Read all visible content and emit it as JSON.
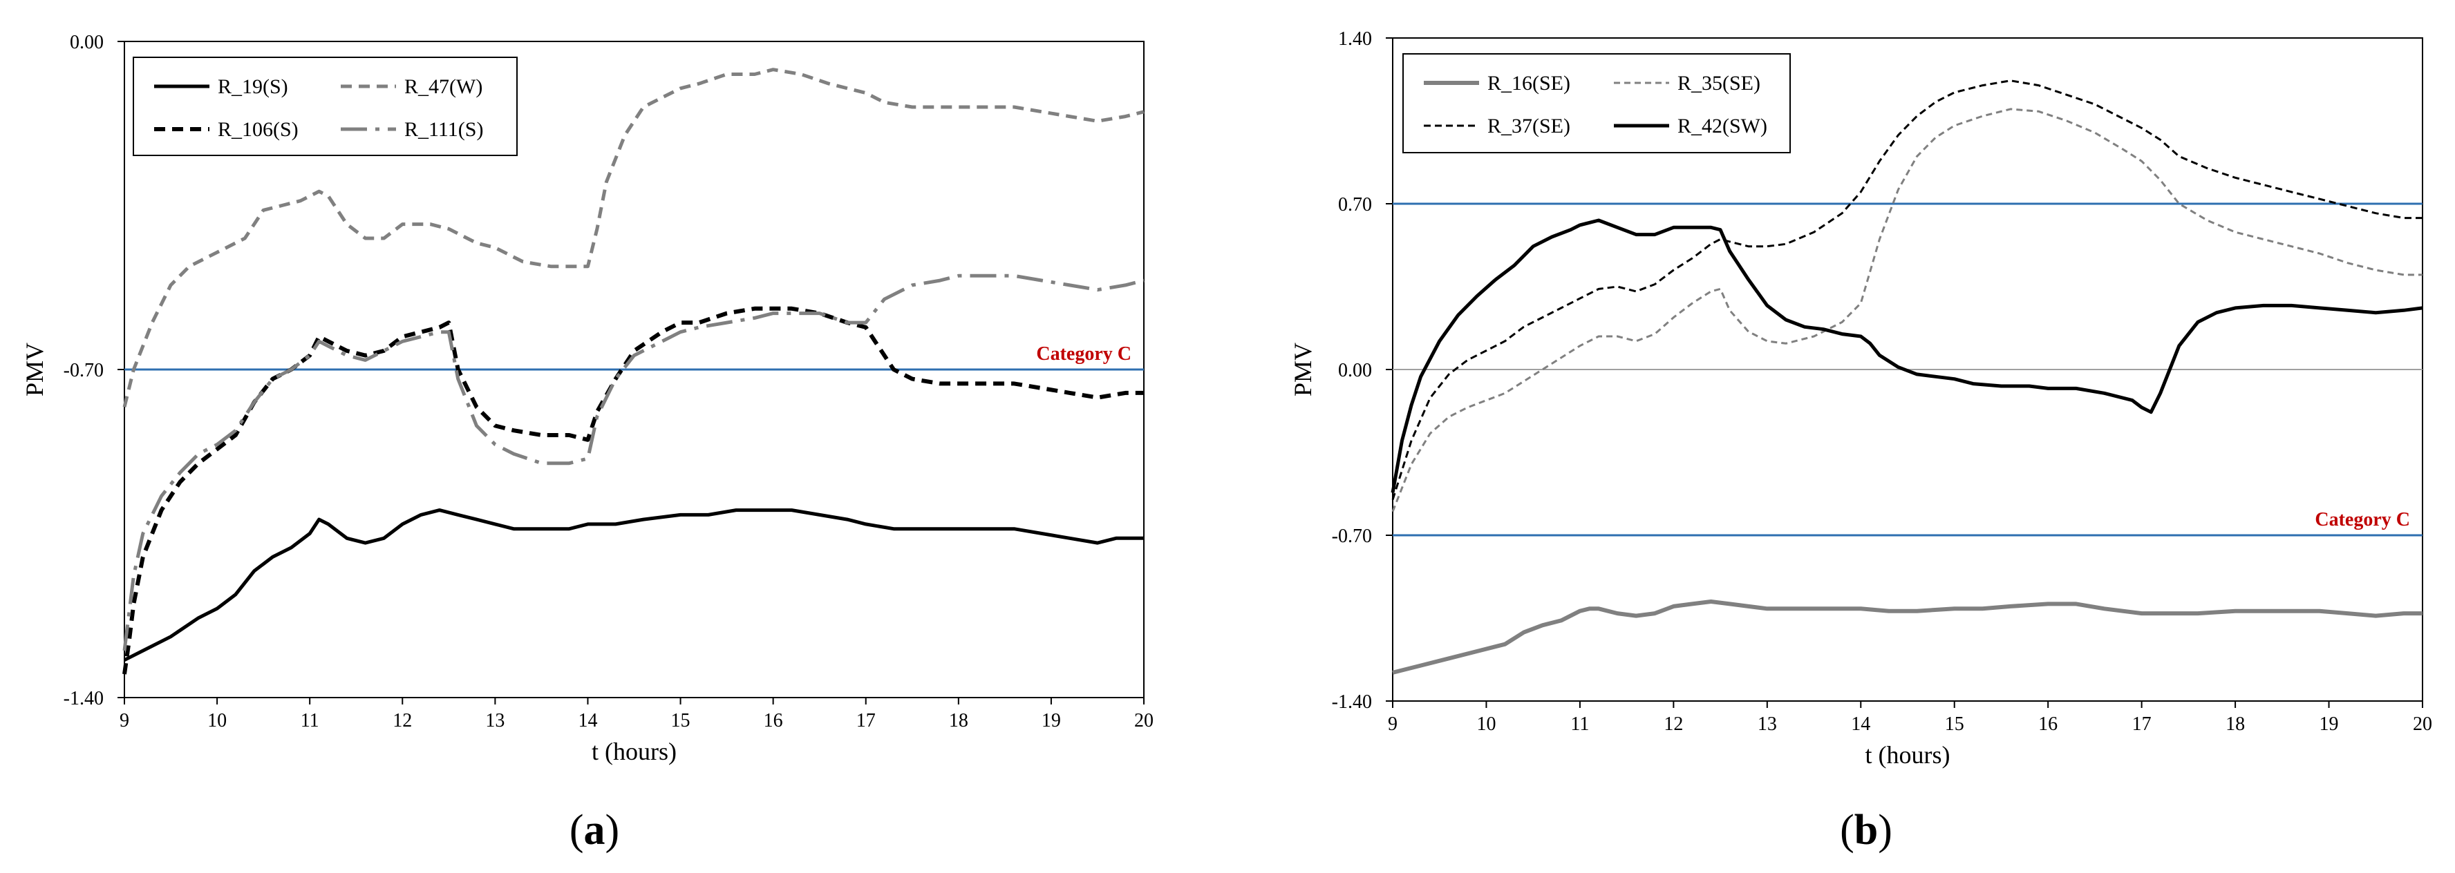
{
  "chart_data": [
    {
      "type": "line",
      "panel_label": "a",
      "xlabel": "t (hours)",
      "ylabel": "PMV",
      "xlim": [
        9,
        20
      ],
      "ylim": [
        -1.4,
        0.0
      ],
      "xticks": [
        9,
        10,
        11,
        12,
        13,
        14,
        15,
        16,
        17,
        18,
        19,
        20
      ],
      "yticks": [
        "0.00",
        "-0.70",
        "-1.40"
      ],
      "yticks_values": [
        0.0,
        -0.7,
        -1.4
      ],
      "reference_lines": [
        {
          "y": -0.7,
          "label": "Category C",
          "color": "#2e6fb0",
          "label_color": "#c00000"
        }
      ],
      "legend_position": "top-left",
      "series": [
        {
          "name": "R_19(S)",
          "color": "#000000",
          "dash": "solid",
          "width": 5,
          "x": [
            9,
            9.2,
            9.5,
            9.8,
            10,
            10.2,
            10.4,
            10.6,
            10.8,
            11,
            11.1,
            11.2,
            11.4,
            11.6,
            11.8,
            12,
            12.2,
            12.4,
            12.6,
            12.8,
            13,
            13.2,
            13.5,
            13.8,
            14,
            14.3,
            14.6,
            15,
            15.3,
            15.6,
            15.9,
            16.2,
            16.5,
            16.8,
            17,
            17.3,
            17.6,
            18,
            18.3,
            18.6,
            18.9,
            19.2,
            19.5,
            19.7,
            20
          ],
          "y": [
            -1.32,
            -1.3,
            -1.27,
            -1.23,
            -1.21,
            -1.18,
            -1.13,
            -1.1,
            -1.08,
            -1.05,
            -1.02,
            -1.03,
            -1.06,
            -1.07,
            -1.06,
            -1.03,
            -1.01,
            -1.0,
            -1.01,
            -1.02,
            -1.03,
            -1.04,
            -1.04,
            -1.04,
            -1.03,
            -1.03,
            -1.02,
            -1.01,
            -1.01,
            -1.0,
            -1.0,
            -1.0,
            -1.01,
            -1.02,
            -1.03,
            -1.04,
            -1.04,
            -1.04,
            -1.04,
            -1.04,
            -1.05,
            -1.06,
            -1.07,
            -1.06,
            -1.06
          ]
        },
        {
          "name": "R_47(W)",
          "color": "#808080",
          "dash": "dash",
          "width": 5,
          "x": [
            9,
            9.1,
            9.3,
            9.5,
            9.7,
            9.9,
            10.1,
            10.3,
            10.5,
            10.7,
            10.9,
            11,
            11.1,
            11.2,
            11.4,
            11.6,
            11.8,
            12,
            12.3,
            12.5,
            12.8,
            13,
            13.3,
            13.6,
            14,
            14.1,
            14.2,
            14.4,
            14.6,
            14.8,
            15,
            15.2,
            15.5,
            15.8,
            16,
            16.3,
            16.6,
            17,
            17.2,
            17.5,
            17.8,
            18,
            18.3,
            18.6,
            18.9,
            19.2,
            19.5,
            19.8,
            20
          ],
          "y": [
            -0.78,
            -0.7,
            -0.6,
            -0.52,
            -0.48,
            -0.46,
            -0.44,
            -0.42,
            -0.36,
            -0.35,
            -0.34,
            -0.33,
            -0.32,
            -0.33,
            -0.39,
            -0.42,
            -0.42,
            -0.39,
            -0.39,
            -0.4,
            -0.43,
            -0.44,
            -0.47,
            -0.48,
            -0.48,
            -0.4,
            -0.3,
            -0.2,
            -0.14,
            -0.12,
            -0.1,
            -0.09,
            -0.07,
            -0.07,
            -0.06,
            -0.07,
            -0.09,
            -0.11,
            -0.13,
            -0.14,
            -0.14,
            -0.14,
            -0.14,
            -0.14,
            -0.15,
            -0.16,
            -0.17,
            -0.16,
            -0.15
          ]
        },
        {
          "name": "R_106(S)",
          "color": "#000000",
          "dash": "dash",
          "width": 6,
          "x": [
            9,
            9.05,
            9.1,
            9.2,
            9.4,
            9.6,
            9.8,
            10,
            10.2,
            10.4,
            10.6,
            10.8,
            11,
            11.1,
            11.2,
            11.4,
            11.6,
            11.8,
            12,
            12.2,
            12.4,
            12.5,
            12.6,
            12.8,
            13,
            13.2,
            13.5,
            13.8,
            14,
            14.1,
            14.3,
            14.5,
            14.8,
            15,
            15.2,
            15.5,
            15.8,
            16,
            16.2,
            16.5,
            16.8,
            17,
            17.1,
            17.3,
            17.5,
            17.8,
            18,
            18.3,
            18.6,
            18.9,
            19.2,
            19.5,
            19.8,
            20
          ],
          "y": [
            -1.35,
            -1.28,
            -1.2,
            -1.1,
            -1.0,
            -0.94,
            -0.9,
            -0.87,
            -0.84,
            -0.77,
            -0.72,
            -0.7,
            -0.67,
            -0.63,
            -0.64,
            -0.66,
            -0.67,
            -0.66,
            -0.63,
            -0.62,
            -0.61,
            -0.6,
            -0.7,
            -0.78,
            -0.82,
            -0.83,
            -0.84,
            -0.84,
            -0.85,
            -0.79,
            -0.72,
            -0.66,
            -0.62,
            -0.6,
            -0.6,
            -0.58,
            -0.57,
            -0.57,
            -0.57,
            -0.58,
            -0.6,
            -0.61,
            -0.64,
            -0.7,
            -0.72,
            -0.73,
            -0.73,
            -0.73,
            -0.73,
            -0.74,
            -0.75,
            -0.76,
            -0.75,
            -0.75
          ]
        },
        {
          "name": "R_111(S)",
          "color": "#808080",
          "dash": "dashdot",
          "width": 5,
          "x": [
            9,
            9.05,
            9.1,
            9.2,
            9.4,
            9.6,
            9.8,
            10,
            10.2,
            10.4,
            10.6,
            10.8,
            11,
            11.1,
            11.2,
            11.4,
            11.6,
            11.8,
            12,
            12.2,
            12.4,
            12.5,
            12.6,
            12.8,
            13,
            13.2,
            13.5,
            13.8,
            14,
            14.1,
            14.3,
            14.5,
            14.8,
            15,
            15.2,
            15.5,
            15.8,
            16,
            16.2,
            16.5,
            16.8,
            17,
            17.2,
            17.5,
            17.8,
            18,
            18.3,
            18.6,
            18.9,
            19.2,
            19.5,
            19.8,
            20
          ],
          "y": [
            -1.3,
            -1.22,
            -1.14,
            -1.05,
            -0.97,
            -0.92,
            -0.88,
            -0.86,
            -0.83,
            -0.77,
            -0.72,
            -0.7,
            -0.67,
            -0.64,
            -0.65,
            -0.67,
            -0.68,
            -0.66,
            -0.64,
            -0.63,
            -0.62,
            -0.62,
            -0.72,
            -0.82,
            -0.86,
            -0.88,
            -0.9,
            -0.9,
            -0.89,
            -0.8,
            -0.72,
            -0.67,
            -0.64,
            -0.62,
            -0.61,
            -0.6,
            -0.59,
            -0.58,
            -0.58,
            -0.58,
            -0.6,
            -0.6,
            -0.55,
            -0.52,
            -0.51,
            -0.5,
            -0.5,
            -0.5,
            -0.51,
            -0.52,
            -0.53,
            -0.52,
            -0.51
          ]
        }
      ]
    },
    {
      "type": "line",
      "panel_label": "b",
      "xlabel": "t (hours)",
      "ylabel": "PMV",
      "xlim": [
        9,
        20
      ],
      "ylim": [
        -1.4,
        1.4
      ],
      "xticks": [
        9,
        10,
        11,
        12,
        13,
        14,
        15,
        16,
        17,
        18,
        19,
        20
      ],
      "yticks": [
        "1.40",
        "0.70",
        "0.00",
        "-0.70",
        "-1.40"
      ],
      "yticks_values": [
        1.4,
        0.7,
        0.0,
        -0.7,
        -1.4
      ],
      "reference_lines": [
        {
          "y": 0.7,
          "label": "",
          "color": "#2e6fb0"
        },
        {
          "y": 0.0,
          "label": "",
          "color": "#a0a0a0"
        },
        {
          "y": -0.7,
          "label": "Category C",
          "color": "#2e6fb0",
          "label_color": "#c00000"
        }
      ],
      "legend_position": "top-left",
      "series": [
        {
          "name": "R_16(SE)",
          "color": "#808080",
          "dash": "solid",
          "width": 6,
          "x": [
            9,
            9.3,
            9.6,
            9.9,
            10.2,
            10.4,
            10.6,
            10.8,
            11,
            11.1,
            11.2,
            11.4,
            11.6,
            11.8,
            12,
            12.2,
            12.4,
            12.6,
            12.8,
            13,
            13.3,
            13.6,
            14,
            14.3,
            14.6,
            15,
            15.3,
            15.6,
            16,
            16.3,
            16.6,
            17,
            17.3,
            17.6,
            18,
            18.3,
            18.6,
            18.9,
            19.2,
            19.5,
            19.8,
            20
          ],
          "y": [
            -1.28,
            -1.25,
            -1.22,
            -1.19,
            -1.16,
            -1.11,
            -1.08,
            -1.06,
            -1.02,
            -1.01,
            -1.01,
            -1.03,
            -1.04,
            -1.03,
            -1.0,
            -0.99,
            -0.98,
            -0.99,
            -1.0,
            -1.01,
            -1.01,
            -1.01,
            -1.01,
            -1.02,
            -1.02,
            -1.01,
            -1.01,
            -1.0,
            -0.99,
            -0.99,
            -1.01,
            -1.03,
            -1.03,
            -1.03,
            -1.02,
            -1.02,
            -1.02,
            -1.02,
            -1.03,
            -1.04,
            -1.03,
            -1.03
          ]
        },
        {
          "name": "R_35(SE)",
          "color": "#808080",
          "dash": "finedash",
          "width": 3,
          "x": [
            9,
            9.2,
            9.4,
            9.6,
            9.8,
            10,
            10.2,
            10.4,
            10.6,
            10.8,
            11,
            11.2,
            11.4,
            11.6,
            11.8,
            12,
            12.2,
            12.4,
            12.5,
            12.6,
            12.8,
            13,
            13.2,
            13.5,
            13.8,
            14,
            14.2,
            14.4,
            14.6,
            14.8,
            15,
            15.3,
            15.6,
            15.9,
            16.2,
            16.5,
            16.8,
            17,
            17.2,
            17.4,
            17.7,
            18,
            18.3,
            18.6,
            18.9,
            19.2,
            19.5,
            19.8,
            20
          ],
          "y": [
            -0.6,
            -0.4,
            -0.27,
            -0.2,
            -0.16,
            -0.13,
            -0.1,
            -0.05,
            0.0,
            0.05,
            0.1,
            0.14,
            0.14,
            0.12,
            0.15,
            0.22,
            0.28,
            0.33,
            0.34,
            0.25,
            0.16,
            0.12,
            0.11,
            0.14,
            0.2,
            0.28,
            0.55,
            0.76,
            0.9,
            0.98,
            1.03,
            1.07,
            1.1,
            1.09,
            1.05,
            1.0,
            0.93,
            0.88,
            0.8,
            0.7,
            0.63,
            0.58,
            0.55,
            0.52,
            0.49,
            0.45,
            0.42,
            0.4,
            0.4
          ]
        },
        {
          "name": "R_37(SE)",
          "color": "#000000",
          "dash": "shortdash",
          "width": 3,
          "x": [
            9,
            9.2,
            9.4,
            9.6,
            9.8,
            10,
            10.2,
            10.4,
            10.6,
            10.8,
            11,
            11.2,
            11.4,
            11.6,
            11.8,
            12,
            12.2,
            12.4,
            12.5,
            12.6,
            12.8,
            13,
            13.2,
            13.5,
            13.8,
            14,
            14.2,
            14.4,
            14.6,
            14.8,
            15,
            15.3,
            15.6,
            15.9,
            16.2,
            16.5,
            16.8,
            17,
            17.2,
            17.4,
            17.7,
            18,
            18.3,
            18.6,
            18.9,
            19.2,
            19.5,
            19.8,
            20
          ],
          "y": [
            -0.55,
            -0.3,
            -0.12,
            -0.02,
            0.04,
            0.08,
            0.12,
            0.18,
            0.22,
            0.26,
            0.3,
            0.34,
            0.35,
            0.33,
            0.36,
            0.42,
            0.47,
            0.53,
            0.55,
            0.54,
            0.52,
            0.52,
            0.53,
            0.58,
            0.66,
            0.75,
            0.88,
            0.99,
            1.07,
            1.13,
            1.17,
            1.2,
            1.22,
            1.2,
            1.16,
            1.12,
            1.06,
            1.02,
            0.97,
            0.9,
            0.85,
            0.81,
            0.78,
            0.75,
            0.72,
            0.69,
            0.66,
            0.64,
            0.64
          ]
        },
        {
          "name": "R_42(SW)",
          "color": "#000000",
          "dash": "solid",
          "width": 5,
          "x": [
            9,
            9.1,
            9.2,
            9.3,
            9.5,
            9.7,
            9.9,
            10.1,
            10.3,
            10.5,
            10.7,
            10.9,
            11,
            11.1,
            11.2,
            11.4,
            11.6,
            11.8,
            12,
            12.2,
            12.4,
            12.5,
            12.6,
            12.8,
            13,
            13.2,
            13.4,
            13.6,
            13.8,
            14,
            14.1,
            14.2,
            14.4,
            14.6,
            14.8,
            15,
            15.2,
            15.5,
            15.8,
            16,
            16.3,
            16.6,
            16.9,
            17,
            17.1,
            17.2,
            17.4,
            17.6,
            17.8,
            18,
            18.3,
            18.6,
            18.9,
            19.2,
            19.5,
            19.8,
            20
          ],
          "y": [
            -0.52,
            -0.3,
            -0.15,
            -0.03,
            0.12,
            0.23,
            0.31,
            0.38,
            0.44,
            0.52,
            0.56,
            0.59,
            0.61,
            0.62,
            0.63,
            0.6,
            0.57,
            0.57,
            0.6,
            0.6,
            0.6,
            0.59,
            0.5,
            0.38,
            0.27,
            0.21,
            0.18,
            0.17,
            0.15,
            0.14,
            0.11,
            0.06,
            0.01,
            -0.02,
            -0.03,
            -0.04,
            -0.06,
            -0.07,
            -0.07,
            -0.08,
            -0.08,
            -0.1,
            -0.13,
            -0.16,
            -0.18,
            -0.1,
            0.1,
            0.2,
            0.24,
            0.26,
            0.27,
            0.27,
            0.26,
            0.25,
            0.24,
            0.25,
            0.26
          ]
        }
      ]
    }
  ]
}
